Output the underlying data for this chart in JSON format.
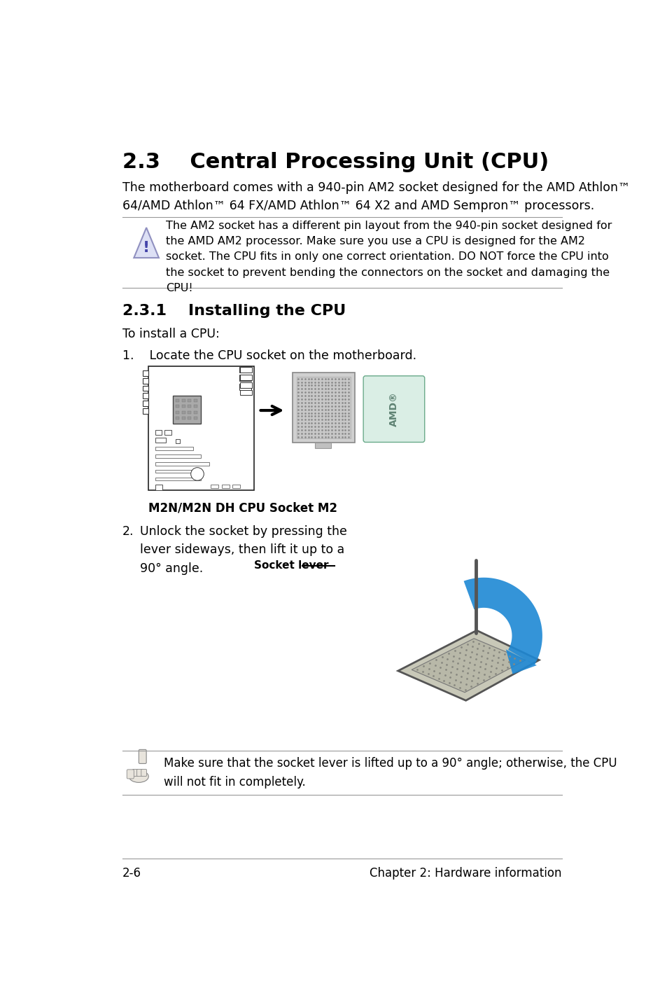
{
  "title": "2.3    Central Processing Unit (CPU)",
  "intro_text": "The motherboard comes with a 940-pin AM2 socket designed for the AMD Athlon™\n64/AMD Athlon™ 64 FX/AMD Athlon™ 64 X2 and AMD Sempron™ processors.",
  "warning_text": "The AM2 socket has a different pin layout from the 940-pin socket designed for\nthe AMD AM2 processor. Make sure you use a CPU is designed for the AM2\nsocket. The CPU fits in only one correct orientation. DO NOT force the CPU into\nthe socket to prevent bending the connectors on the socket and damaging the\nCPU!",
  "section_title": "2.3.1    Installing the CPU",
  "install_intro": "To install a CPU:",
  "step1_text": "1.    Locate the CPU socket on the motherboard.",
  "step1_caption": "M2N/M2N DH CPU Socket M2",
  "step2_num": "2.",
  "step2_text": "Unlock the socket by pressing the\nlever sideways, then lift it up to a\n90° angle.",
  "socket_lever_label": "Socket lever",
  "note_text": "Make sure that the socket lever is lifted up to a 90° angle; otherwise, the CPU\nwill not fit in completely.",
  "footer_left": "2-6",
  "footer_right": "Chapter 2: Hardware information",
  "bg_color": "#ffffff",
  "text_color": "#000000"
}
